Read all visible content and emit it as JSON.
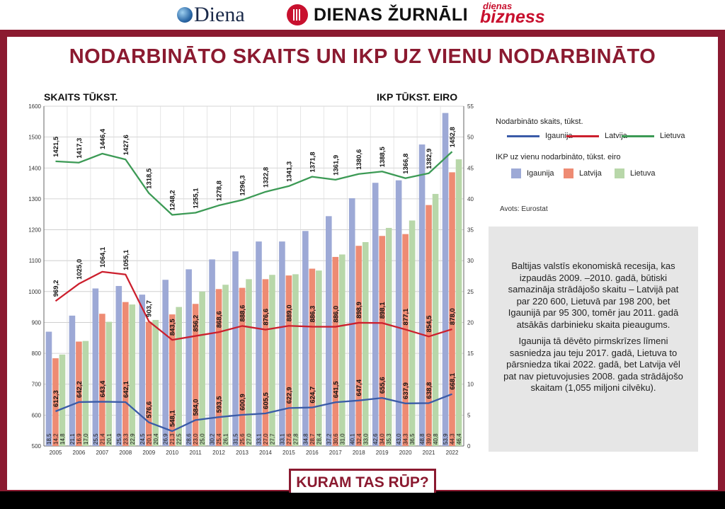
{
  "header": {
    "logo_diena": "Diena",
    "logo_dz": "DIENAS ŽURNĀLI",
    "logo_db_small": "dienas",
    "logo_db_big": "bizness"
  },
  "title": "NODARBINĀTO SKAITS UN IKP UZ VIENU NODARBINĀTO",
  "left_axis_title": "SKAITS TŪKST.",
  "right_axis_title": "IKP TŪKST. EIRO",
  "legend": {
    "lines_title": "Nodarbināto skaits, tūkst.",
    "bars_title": "IKP uz vienu nodarbināto, tūkst. eiro",
    "items": [
      "Igaunija",
      "Latvija",
      "Lietuva"
    ]
  },
  "source": "Avots: Eurostat",
  "textbox": {
    "p1": "Baltijas valstīs ekonomiskā recesija, kas izpaudās 2009. –2010. gadā, būtiski samazināja strādājošo skaitu – Latvijā pat par 220 600, Lietuvā par 198 200, bet Igaunijā par 95 300, tomēr jau 2011. gadā atsākās darbinieku skaita pieaugums.",
    "p2": "Igaunija tā dēvēto pirmskrīzes līmeni sasniedza jau teju 2017. gadā, Lietuva to pārsniedza tikai 2022. gadā, bet Latvija vēl pat nav pietuvojusies 2008. gada strādājošo skaitam (1,055 miljoni cilvēku)."
  },
  "footer": "KURAM TAS RŪP?",
  "colors": {
    "frame": "#8b1a30",
    "estonia_line": "#3a5ba8",
    "latvia_line": "#cc1f2d",
    "lithuania_line": "#3c9a55",
    "estonia_bar": "#9da9d6",
    "latvia_bar": "#ee8b73",
    "lithuania_bar": "#b8d7a9"
  },
  "chart_data": {
    "type": "bar",
    "categories": [
      "2005",
      "2006",
      "2007",
      "2008",
      "2009",
      "2010",
      "2011",
      "2012",
      "2013",
      "2014",
      "2015",
      "2016",
      "2017",
      "2018",
      "2019",
      "2020",
      "2021",
      "2022"
    ],
    "left_axis": {
      "title": "SKAITS TŪKST.",
      "ylim": [
        500,
        1600
      ],
      "ticks": [
        500,
        600,
        700,
        800,
        900,
        1000,
        1100,
        1200,
        1300,
        1400,
        1500,
        1600
      ]
    },
    "right_axis": {
      "title": "IKP TŪKST. EIRO",
      "ylim": [
        0,
        55
      ],
      "ticks": [
        0,
        5,
        10,
        15,
        20,
        25,
        30,
        35,
        40,
        45,
        50,
        55
      ]
    },
    "grid": true,
    "line_series": [
      {
        "name": "Igaunija",
        "axis": "left",
        "values": [
          612.3,
          642.2,
          643.4,
          642.1,
          576.6,
          548.1,
          584.0,
          593.5,
          600.9,
          605.5,
          622.9,
          624.7,
          641.5,
          647.4,
          655.6,
          637.9,
          638.8,
          668.1
        ]
      },
      {
        "name": "Latvija",
        "axis": "left",
        "values": [
          969.2,
          1025.0,
          1064.1,
          1055.1,
          903.7,
          843.5,
          856.2,
          868.6,
          888.6,
          876.6,
          889.0,
          886.3,
          886.0,
          898.9,
          898.1,
          877.1,
          854.5,
          878.0
        ]
      },
      {
        "name": "Lietuva",
        "axis": "left",
        "values": [
          1421.5,
          1417.3,
          1446.4,
          1427.6,
          1318.5,
          1248.2,
          1255.1,
          1278.8,
          1296.3,
          1322.8,
          1341.3,
          1371.8,
          1361.9,
          1380.6,
          1388.5,
          1366.8,
          1382.9,
          1452.8
        ]
      }
    ],
    "bar_series": [
      {
        "name": "Igaunija",
        "axis": "right",
        "values": [
          18.5,
          21.1,
          25.5,
          25.9,
          24.5,
          26.9,
          28.6,
          30.2,
          31.5,
          33.1,
          33.1,
          34.8,
          37.2,
          40.1,
          42.6,
          43.0,
          48.8,
          53.9
        ]
      },
      {
        "name": "Latvija",
        "axis": "right",
        "values": [
          14.2,
          16.9,
          21.4,
          23.3,
          20.1,
          21.3,
          23.0,
          25.4,
          25.6,
          27.0,
          27.6,
          28.7,
          30.6,
          32.4,
          34.0,
          34.3,
          39.0,
          44.3
        ]
      },
      {
        "name": "Lietuva",
        "axis": "right",
        "values": [
          14.8,
          17.0,
          20.1,
          22.9,
          20.4,
          22.5,
          25.0,
          26.1,
          27.0,
          27.7,
          27.8,
          28.4,
          31.0,
          33.0,
          35.3,
          36.5,
          40.8,
          46.4
        ]
      }
    ]
  }
}
